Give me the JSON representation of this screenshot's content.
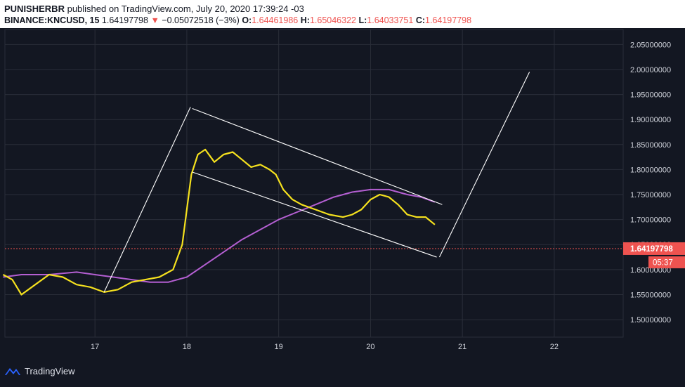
{
  "header": {
    "author": "PUNISHERBR",
    "published_text": "published on TradingView.com, July 20, 2020 17:39:24 -03",
    "symbol": "BINANCE:KNCUSD, 15",
    "last": "1.64197798",
    "change_arrow": "▼",
    "change": "−0.05072518 (−3%)",
    "o_label": "O:",
    "o_value": "1.64461986",
    "h_label": "H:",
    "h_value": "1.65046322",
    "l_label": "L:",
    "l_value": "1.64033751",
    "c_label": "C:",
    "c_value": "1.64197798"
  },
  "footer": {
    "brand": "TradingView",
    "icon": "tradingview-logo-icon"
  },
  "colors": {
    "background": "#131722",
    "grid": "#2a2e39",
    "ema_fast": "#f5e11e",
    "ma_slow": "#b45fd2",
    "candle_up": "#26a69a",
    "candle_down": "#ef5350",
    "price_tag": "#ef5350",
    "drawing": "#ffffff"
  },
  "chart_data": {
    "type": "line",
    "title": "",
    "xlabel": "",
    "ylabel": "",
    "x_ticks": [
      "17",
      "18",
      "19",
      "20",
      "21",
      "22"
    ],
    "y_ticks": [
      "1.50000000",
      "1.55000000",
      "1.60000000",
      "1.65000000",
      "1.70000000",
      "1.75000000",
      "1.80000000",
      "1.85000000",
      "1.90000000",
      "1.95000000",
      "2.00000000",
      "2.05000000"
    ],
    "xlim": [
      16.02,
      22.75
    ],
    "ylim": [
      1.465,
      2.08
    ],
    "grid": true,
    "last_price_label": "1.64197798",
    "countdown_label": "05:37",
    "series": [
      {
        "key": "ema_fast",
        "x": [
          16.0,
          16.1,
          16.2,
          16.35,
          16.5,
          16.65,
          16.8,
          16.95,
          17.1,
          17.25,
          17.4,
          17.55,
          17.7,
          17.85,
          17.95,
          18.0,
          18.05,
          18.12,
          18.2,
          18.3,
          18.4,
          18.5,
          18.6,
          18.7,
          18.8,
          18.9,
          18.97,
          19.05,
          19.15,
          19.25,
          19.4,
          19.55,
          19.7,
          19.8,
          19.9,
          20.0,
          20.1,
          20.2,
          20.3,
          20.4,
          20.5,
          20.6,
          20.7
        ],
        "y": [
          1.59,
          1.58,
          1.55,
          1.57,
          1.59,
          1.585,
          1.57,
          1.565,
          1.555,
          1.56,
          1.575,
          1.58,
          1.585,
          1.6,
          1.65,
          1.72,
          1.79,
          1.83,
          1.84,
          1.815,
          1.83,
          1.835,
          1.82,
          1.805,
          1.81,
          1.8,
          1.79,
          1.76,
          1.74,
          1.73,
          1.72,
          1.71,
          1.705,
          1.71,
          1.72,
          1.74,
          1.75,
          1.745,
          1.73,
          1.71,
          1.705,
          1.705,
          1.69
        ]
      },
      {
        "key": "ma_slow",
        "x": [
          16.0,
          16.2,
          16.5,
          16.8,
          17.0,
          17.2,
          17.4,
          17.6,
          17.8,
          18.0,
          18.2,
          18.4,
          18.6,
          18.8,
          19.0,
          19.2,
          19.4,
          19.6,
          19.8,
          20.0,
          20.2,
          20.4,
          20.55,
          20.7
        ],
        "y": [
          1.585,
          1.59,
          1.59,
          1.595,
          1.59,
          1.585,
          1.58,
          1.575,
          1.575,
          1.585,
          1.61,
          1.635,
          1.66,
          1.68,
          1.7,
          1.715,
          1.73,
          1.745,
          1.755,
          1.76,
          1.76,
          1.75,
          1.745,
          1.735
        ]
      }
    ],
    "drawings": [
      {
        "name": "trend-line-impulse-up",
        "x": [
          17.1,
          18.04
        ],
        "y": [
          1.555,
          1.925
        ]
      },
      {
        "name": "channel-upper-line",
        "x": [
          18.06,
          20.78
        ],
        "y": [
          1.922,
          1.73
        ]
      },
      {
        "name": "channel-lower-line",
        "x": [
          18.06,
          20.72
        ],
        "y": [
          1.795,
          1.625
        ]
      },
      {
        "name": "projection-line",
        "x": [
          20.75,
          21.73
        ],
        "y": [
          1.625,
          1.995
        ]
      }
    ]
  }
}
